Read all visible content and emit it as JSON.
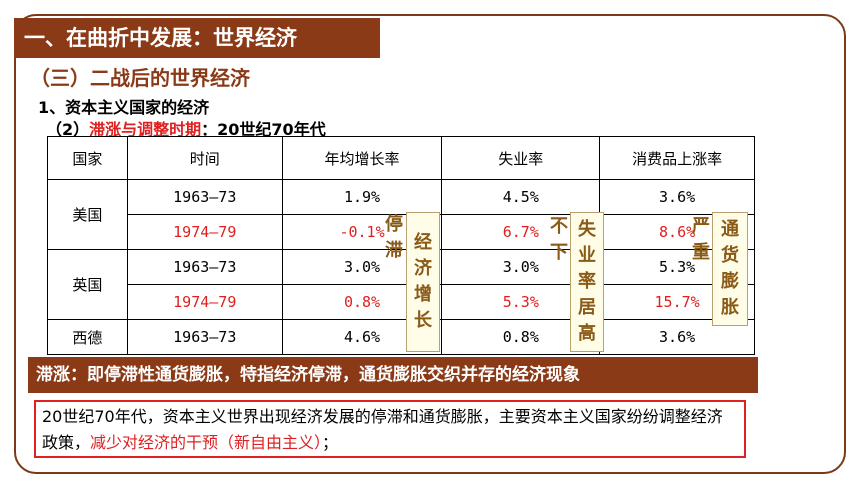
{
  "title": "一、在曲折中发展：世界经济",
  "subtitle": "（三）二战后的世界经济",
  "heading1": "1、资本主义国家的经济",
  "heading2": {
    "prefix": "（2）",
    "red": "滞涨与调整时期",
    "suffix": "：20世纪70年代"
  },
  "table": {
    "headers": [
      "国家",
      "时间",
      "年均增长率",
      "失业率",
      "消费品上涨率"
    ],
    "rows": [
      {
        "country": "美国",
        "period": "1963—73",
        "growth": "1.9%",
        "unemployment": "4.5%",
        "inflation": "3.6%",
        "highlight": false
      },
      {
        "country": "",
        "period": "1974—79",
        "growth": "-0.1%",
        "unemployment": "6.7%",
        "inflation": "8.6%",
        "highlight": true
      },
      {
        "country": "英国",
        "period": "1963—73",
        "growth": "3.0%",
        "unemployment": "3.0%",
        "inflation": "5.3%",
        "highlight": false
      },
      {
        "country": "",
        "period": "1974—79",
        "growth": "0.8%",
        "unemployment": "5.3%",
        "inflation": "15.7%",
        "highlight": true
      },
      {
        "country": "西德",
        "period": "1963—73",
        "growth": "4.6%",
        "unemployment": "0.8%",
        "inflation": "3.6%",
        "highlight": false
      }
    ]
  },
  "callouts": {
    "stagnation_left": "停滞",
    "stagnation_right": "经济增长",
    "unemployment_left": "不下",
    "unemployment_right": "失业率居高",
    "inflation_left": "严重",
    "inflation_right": "通货膨胀"
  },
  "definition": "滞涨：即停滞性通货膨胀，特指经济停滞，通货膨胀交织并存的经济现象",
  "note": {
    "text": "20世纪70年代，资本主义世界出现经济发展的停滞和通货膨胀，主要资本主义国家纷纷调整经济政策，",
    "red": "减少对经济的干预（新自由主义）",
    "end": "；"
  }
}
